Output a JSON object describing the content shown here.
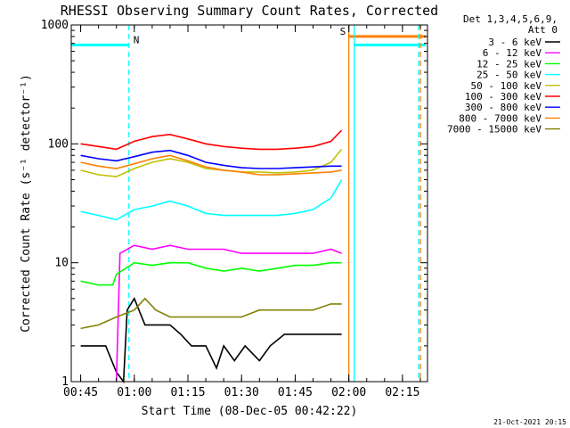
{
  "chart_data": {
    "type": "line",
    "title": "RHESSI Observing Summary Count Rates, Corrected",
    "xlabel": "Start Time (08-Dec-05 00:42:22)",
    "ylabel": "Corrected Count Rate (s⁻¹ detector⁻¹)",
    "y_scale": "log",
    "ylim": [
      1,
      1000
    ],
    "xlim": [
      "00:42:22",
      "02:22:00"
    ],
    "x_ticks": [
      "00:45",
      "01:00",
      "01:15",
      "01:30",
      "01:45",
      "02:00",
      "02:15"
    ],
    "y_ticks": [
      "1",
      "10",
      "100",
      "1000"
    ],
    "legend_header": [
      "Det 1,3,4,5,6,9,",
      "Att 0"
    ],
    "legend_position": "right",
    "series": [
      {
        "name": "3 - 6 keV",
        "color": "#000000",
        "points": [
          [
            "00:45",
            2
          ],
          [
            "00:52",
            2
          ],
          [
            "00:55",
            1.2
          ],
          [
            "00:57",
            1
          ],
          [
            "00:58",
            4
          ],
          [
            "01:00",
            5
          ],
          [
            "01:03",
            3
          ],
          [
            "01:06",
            3
          ],
          [
            "01:10",
            3
          ],
          [
            "01:13",
            2.5
          ],
          [
            "01:16",
            2
          ],
          [
            "01:20",
            2
          ],
          [
            "01:23",
            1.3
          ],
          [
            "01:25",
            2
          ],
          [
            "01:28",
            1.5
          ],
          [
            "01:31",
            2
          ],
          [
            "01:35",
            1.5
          ],
          [
            "01:38",
            2
          ],
          [
            "01:42",
            2.5
          ],
          [
            "01:46",
            2.5
          ],
          [
            "01:50",
            2.5
          ],
          [
            "01:54",
            2.5
          ],
          [
            "01:58",
            2.5
          ]
        ]
      },
      {
        "name": "6 - 12 keV",
        "color": "#ff00ff",
        "points": [
          [
            "00:55",
            1
          ],
          [
            "00:56",
            12
          ],
          [
            "01:00",
            14
          ],
          [
            "01:05",
            13
          ],
          [
            "01:10",
            14
          ],
          [
            "01:15",
            13
          ],
          [
            "01:20",
            13
          ],
          [
            "01:25",
            13
          ],
          [
            "01:30",
            12
          ],
          [
            "01:35",
            12
          ],
          [
            "01:40",
            12
          ],
          [
            "01:45",
            12
          ],
          [
            "01:50",
            12
          ],
          [
            "01:55",
            13
          ],
          [
            "01:58",
            12
          ]
        ]
      },
      {
        "name": "12 - 25 keV",
        "color": "#00ff00",
        "points": [
          [
            "00:45",
            7
          ],
          [
            "00:50",
            6.5
          ],
          [
            "00:54",
            6.5
          ],
          [
            "00:55",
            8
          ],
          [
            "01:00",
            10
          ],
          [
            "01:05",
            9.5
          ],
          [
            "01:10",
            10
          ],
          [
            "01:15",
            10
          ],
          [
            "01:20",
            9
          ],
          [
            "01:25",
            8.5
          ],
          [
            "01:30",
            9
          ],
          [
            "01:35",
            8.5
          ],
          [
            "01:40",
            9
          ],
          [
            "01:45",
            9.5
          ],
          [
            "01:50",
            9.5
          ],
          [
            "01:55",
            10
          ],
          [
            "01:58",
            10
          ]
        ]
      },
      {
        "name": "25 - 50 keV",
        "color": "#00ffff",
        "points": [
          [
            "00:45",
            27
          ],
          [
            "00:50",
            25
          ],
          [
            "00:55",
            23
          ],
          [
            "01:00",
            28
          ],
          [
            "01:05",
            30
          ],
          [
            "01:10",
            33
          ],
          [
            "01:15",
            30
          ],
          [
            "01:20",
            26
          ],
          [
            "01:25",
            25
          ],
          [
            "01:30",
            25
          ],
          [
            "01:35",
            25
          ],
          [
            "01:40",
            25
          ],
          [
            "01:45",
            26
          ],
          [
            "01:50",
            28
          ],
          [
            "01:55",
            35
          ],
          [
            "01:58",
            50
          ]
        ]
      },
      {
        "name": "50 - 100 keV",
        "color": "#c0c000",
        "points": [
          [
            "00:45",
            60
          ],
          [
            "00:50",
            55
          ],
          [
            "00:55",
            53
          ],
          [
            "01:00",
            62
          ],
          [
            "01:05",
            70
          ],
          [
            "01:10",
            75
          ],
          [
            "01:15",
            70
          ],
          [
            "01:20",
            62
          ],
          [
            "01:25",
            60
          ],
          [
            "01:30",
            58
          ],
          [
            "01:35",
            58
          ],
          [
            "01:40",
            57
          ],
          [
            "01:45",
            58
          ],
          [
            "01:50",
            60
          ],
          [
            "01:55",
            70
          ],
          [
            "01:58",
            90
          ]
        ]
      },
      {
        "name": "100 - 300 keV",
        "color": "#ff0000",
        "points": [
          [
            "00:45",
            100
          ],
          [
            "00:50",
            95
          ],
          [
            "00:55",
            90
          ],
          [
            "01:00",
            105
          ],
          [
            "01:05",
            115
          ],
          [
            "01:10",
            120
          ],
          [
            "01:15",
            110
          ],
          [
            "01:20",
            100
          ],
          [
            "01:25",
            95
          ],
          [
            "01:30",
            92
          ],
          [
            "01:35",
            90
          ],
          [
            "01:40",
            90
          ],
          [
            "01:45",
            92
          ],
          [
            "01:50",
            95
          ],
          [
            "01:55",
            105
          ],
          [
            "01:58",
            130
          ]
        ]
      },
      {
        "name": "300 - 800 keV",
        "color": "#0000ff",
        "points": [
          [
            "00:45",
            80
          ],
          [
            "00:50",
            75
          ],
          [
            "00:55",
            72
          ],
          [
            "01:00",
            78
          ],
          [
            "01:05",
            85
          ],
          [
            "01:10",
            88
          ],
          [
            "01:15",
            80
          ],
          [
            "01:20",
            70
          ],
          [
            "01:25",
            66
          ],
          [
            "01:30",
            63
          ],
          [
            "01:35",
            62
          ],
          [
            "01:40",
            62
          ],
          [
            "01:45",
            63
          ],
          [
            "01:50",
            64
          ],
          [
            "01:55",
            65
          ],
          [
            "01:58",
            65
          ]
        ]
      },
      {
        "name": "800 - 7000 keV",
        "color": "#ff8000",
        "points": [
          [
            "00:45",
            70
          ],
          [
            "00:50",
            65
          ],
          [
            "00:55",
            62
          ],
          [
            "01:00",
            68
          ],
          [
            "01:05",
            75
          ],
          [
            "01:10",
            80
          ],
          [
            "01:15",
            72
          ],
          [
            "01:20",
            64
          ],
          [
            "01:25",
            60
          ],
          [
            "01:30",
            58
          ],
          [
            "01:35",
            55
          ],
          [
            "01:40",
            55
          ],
          [
            "01:45",
            56
          ],
          [
            "01:50",
            57
          ],
          [
            "01:55",
            58
          ],
          [
            "01:58",
            60
          ]
        ]
      },
      {
        "name": "7000 - 15000 keV",
        "color": "#808000",
        "points": [
          [
            "00:45",
            2.8
          ],
          [
            "00:50",
            3
          ],
          [
            "00:55",
            3.5
          ],
          [
            "01:00",
            4
          ],
          [
            "01:03",
            5
          ],
          [
            "01:06",
            4
          ],
          [
            "01:10",
            3.5
          ],
          [
            "01:15",
            3.5
          ],
          [
            "01:20",
            3.5
          ],
          [
            "01:25",
            3.5
          ],
          [
            "01:30",
            3.5
          ],
          [
            "01:35",
            4
          ],
          [
            "01:40",
            4
          ],
          [
            "01:45",
            4
          ],
          [
            "01:50",
            4
          ],
          [
            "01:55",
            4.5
          ],
          [
            "01:58",
            4.5
          ]
        ]
      }
    ],
    "flag_bars": [
      {
        "label": "N",
        "color": "#00ffff",
        "y": 680,
        "x_start": "00:42:22",
        "x_end": "00:58:30"
      },
      {
        "label": "S",
        "color": "#ff8000",
        "y": 800,
        "x_start": "02:00:00",
        "x_end": "02:21:30"
      },
      {
        "label": "",
        "color": "#00ffff",
        "y": 680,
        "x_start": "02:01:30",
        "x_end": "02:21:30"
      }
    ],
    "markers": [
      {
        "time": "00:58:30",
        "color": "#00ffff",
        "style": "dashed"
      },
      {
        "time": "02:00:00",
        "color": "#ff8000",
        "style": "solid"
      },
      {
        "time": "02:01:30",
        "color": "#00ffff",
        "style": "solid"
      },
      {
        "time": "02:19:30",
        "color": "#00ffff",
        "style": "dashed"
      },
      {
        "time": "02:20:00",
        "color": "#ff8000",
        "style": "dashed"
      }
    ]
  },
  "footer_stamp": "21-Oct-2021 20:15"
}
